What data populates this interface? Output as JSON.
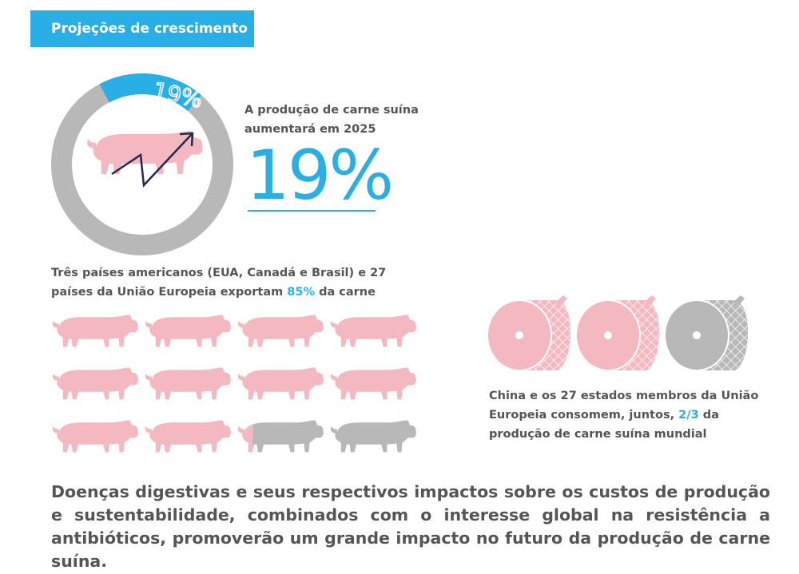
{
  "header": {
    "title": "Projeções de crescimento"
  },
  "growth": {
    "ring_label": "19%",
    "ring_fraction": 0.19,
    "text": "A produção de carne suína aumentará em 2025",
    "big_value": "19%"
  },
  "exports": {
    "text_before": "Três países americanos (EUA, Canadá e Brasil) e 27 países da União Europeia exportam",
    "highlight": "85%",
    "text_after": "da carne",
    "share": 0.85,
    "pig_count": 12
  },
  "consumption": {
    "text_before": "China e os 27 estados membros da União Europeia consomem, juntos,",
    "highlight": "2/3",
    "text_after": "da produção de carne suína mundial",
    "share": 0.6667,
    "ham_count": 3
  },
  "conclusion": {
    "text": "Doenças digestivas e seus respectivos impactos sobre os custos de produção e sustentabilidade, combinados com o interesse global na resistência a antibióticos, promoverão um grande impacto no futuro da produção de carne suína."
  },
  "colors": {
    "accent": "#29aee6",
    "pink": "#f4b8c0",
    "gray": "#b8b8b8",
    "text": "#555555",
    "navy": "#1f2a4d"
  },
  "icons": {
    "pig": "pig-icon",
    "ham": "ham-icon",
    "trend": "trend-arrow-icon"
  }
}
